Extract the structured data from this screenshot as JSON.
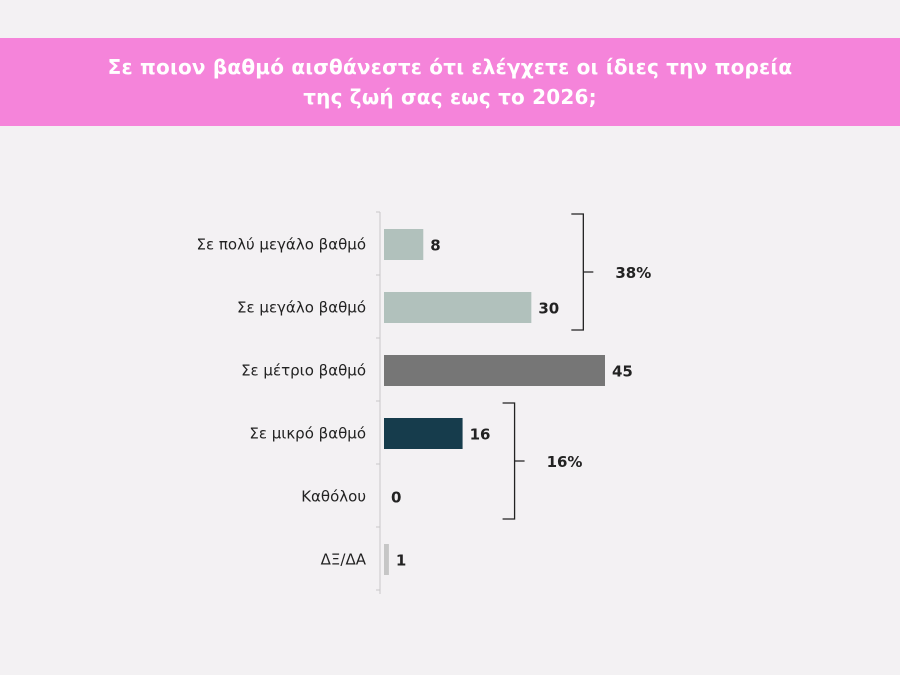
{
  "title": {
    "line1": "Σε ποιον βαθμό αισθάνεστε ότι ελέγχετε οι ίδιες την πορεία",
    "line2": "της ζωή σας εως το 2026;"
  },
  "colors": {
    "header_bg": "#f584da",
    "background": "#f3f1f3",
    "axis": "#c8c8c8"
  },
  "chart_data": {
    "type": "bar",
    "orientation": "horizontal",
    "title": "Σε ποιον βαθμό αισθάνεστε ότι ελέγχετε οι ίδιες την πορεία της ζωή σας εως το 2026;",
    "categories": [
      "Σε πολύ μεγάλο βαθμό",
      "Σε μεγάλο βαθμό",
      "Σε μέτριο βαθμό",
      "Σε μικρό βαθμό",
      "Καθόλου",
      "ΔΞ/ΔΑ"
    ],
    "values": [
      8,
      30,
      45,
      16,
      0,
      1
    ],
    "value_labels": [
      "8",
      "30",
      "45",
      "16",
      "0",
      "1"
    ],
    "bar_colors": [
      "#b1c1bc",
      "#b1c1bc",
      "#767676",
      "#163c4c",
      "#163c4c",
      "#c6c6c6"
    ],
    "xlim": [
      0,
      45
    ],
    "grid": false,
    "groups": [
      {
        "label": "38%",
        "from": 0,
        "to": 1
      },
      {
        "label": "16%",
        "from": 3,
        "to": 4
      }
    ]
  }
}
